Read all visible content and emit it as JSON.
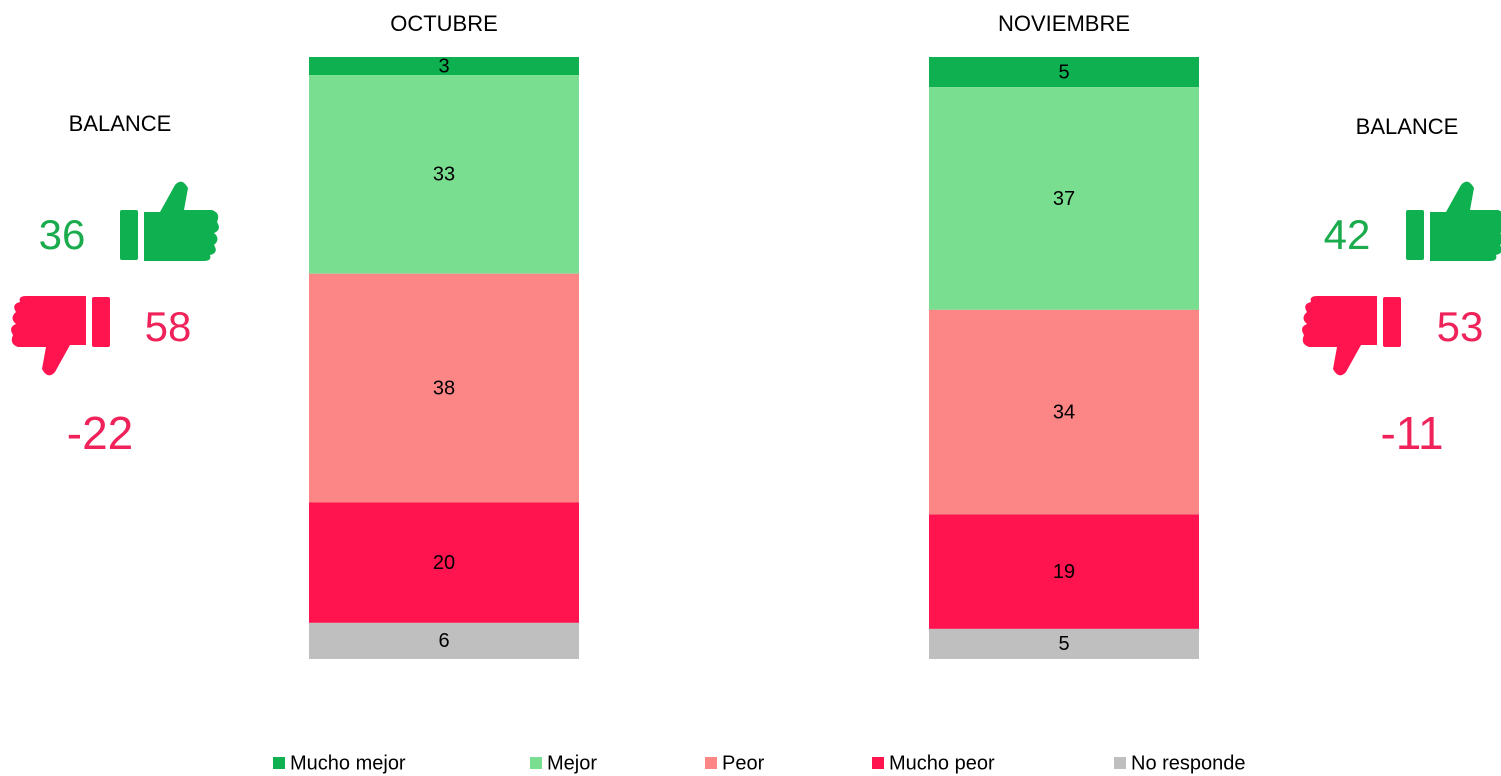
{
  "chart_data": {
    "type": "stacked_bar",
    "categories": [
      "OCTUBRE",
      "NOVIEMBRE"
    ],
    "series": [
      {
        "name": "Mucho mejor",
        "color": "#0fb050",
        "values": [
          3,
          5
        ]
      },
      {
        "name": "Mejor",
        "color": "#79de8f",
        "values": [
          33,
          37
        ]
      },
      {
        "name": "Peor",
        "color": "#fc8686",
        "values": [
          38,
          34
        ]
      },
      {
        "name": "Mucho peor",
        "color": "#ff1450",
        "values": [
          20,
          19
        ]
      },
      {
        "name": "No responde",
        "color": "#bfbfbf",
        "values": [
          6,
          5
        ]
      }
    ],
    "balance": [
      {
        "label": "BALANCE",
        "positive": 36,
        "negative": 58,
        "net": -22
      },
      {
        "label": "BALANCE",
        "positive": 42,
        "negative": 53,
        "net": -11
      }
    ],
    "positive_color": "#1aab4c",
    "negative_color": "#f0225a"
  }
}
